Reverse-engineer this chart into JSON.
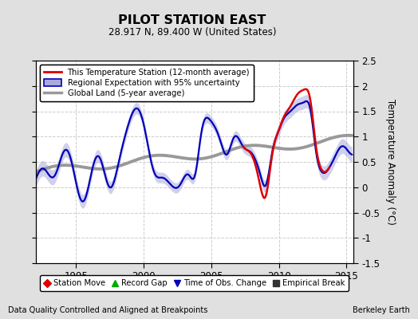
{
  "title": "PILOT STATION EAST",
  "subtitle": "28.917 N, 89.400 W (United States)",
  "ylabel": "Temperature Anomaly (°C)",
  "xlabel_left": "Data Quality Controlled and Aligned at Breakpoints",
  "xlabel_right": "Berkeley Earth",
  "ylim": [
    -1.5,
    2.5
  ],
  "xlim": [
    1992.0,
    2015.5
  ],
  "yticks": [
    -1.5,
    -1.0,
    -0.5,
    0.0,
    0.5,
    1.0,
    1.5,
    2.0,
    2.5
  ],
  "xticks": [
    1995,
    2000,
    2005,
    2010,
    2015
  ],
  "bg_color": "#e0e0e0",
  "plot_bg_color": "#ffffff",
  "grid_color": "#cccccc",
  "red_color": "#dd0000",
  "blue_color": "#0000bb",
  "blue_fill_color": "#aaaadd",
  "gray_color": "#999999",
  "legend1_labels": [
    "This Temperature Station (12-month average)",
    "Regional Expectation with 95% uncertainty",
    "Global Land (5-year average)"
  ],
  "legend2_labels": [
    "Station Move",
    "Record Gap",
    "Time of Obs. Change",
    "Empirical Break"
  ],
  "legend2_colors": [
    "#dd0000",
    "#00aa00",
    "#0000bb",
    "#333333"
  ],
  "legend2_markers": [
    "D",
    "^",
    "v",
    "s"
  ]
}
